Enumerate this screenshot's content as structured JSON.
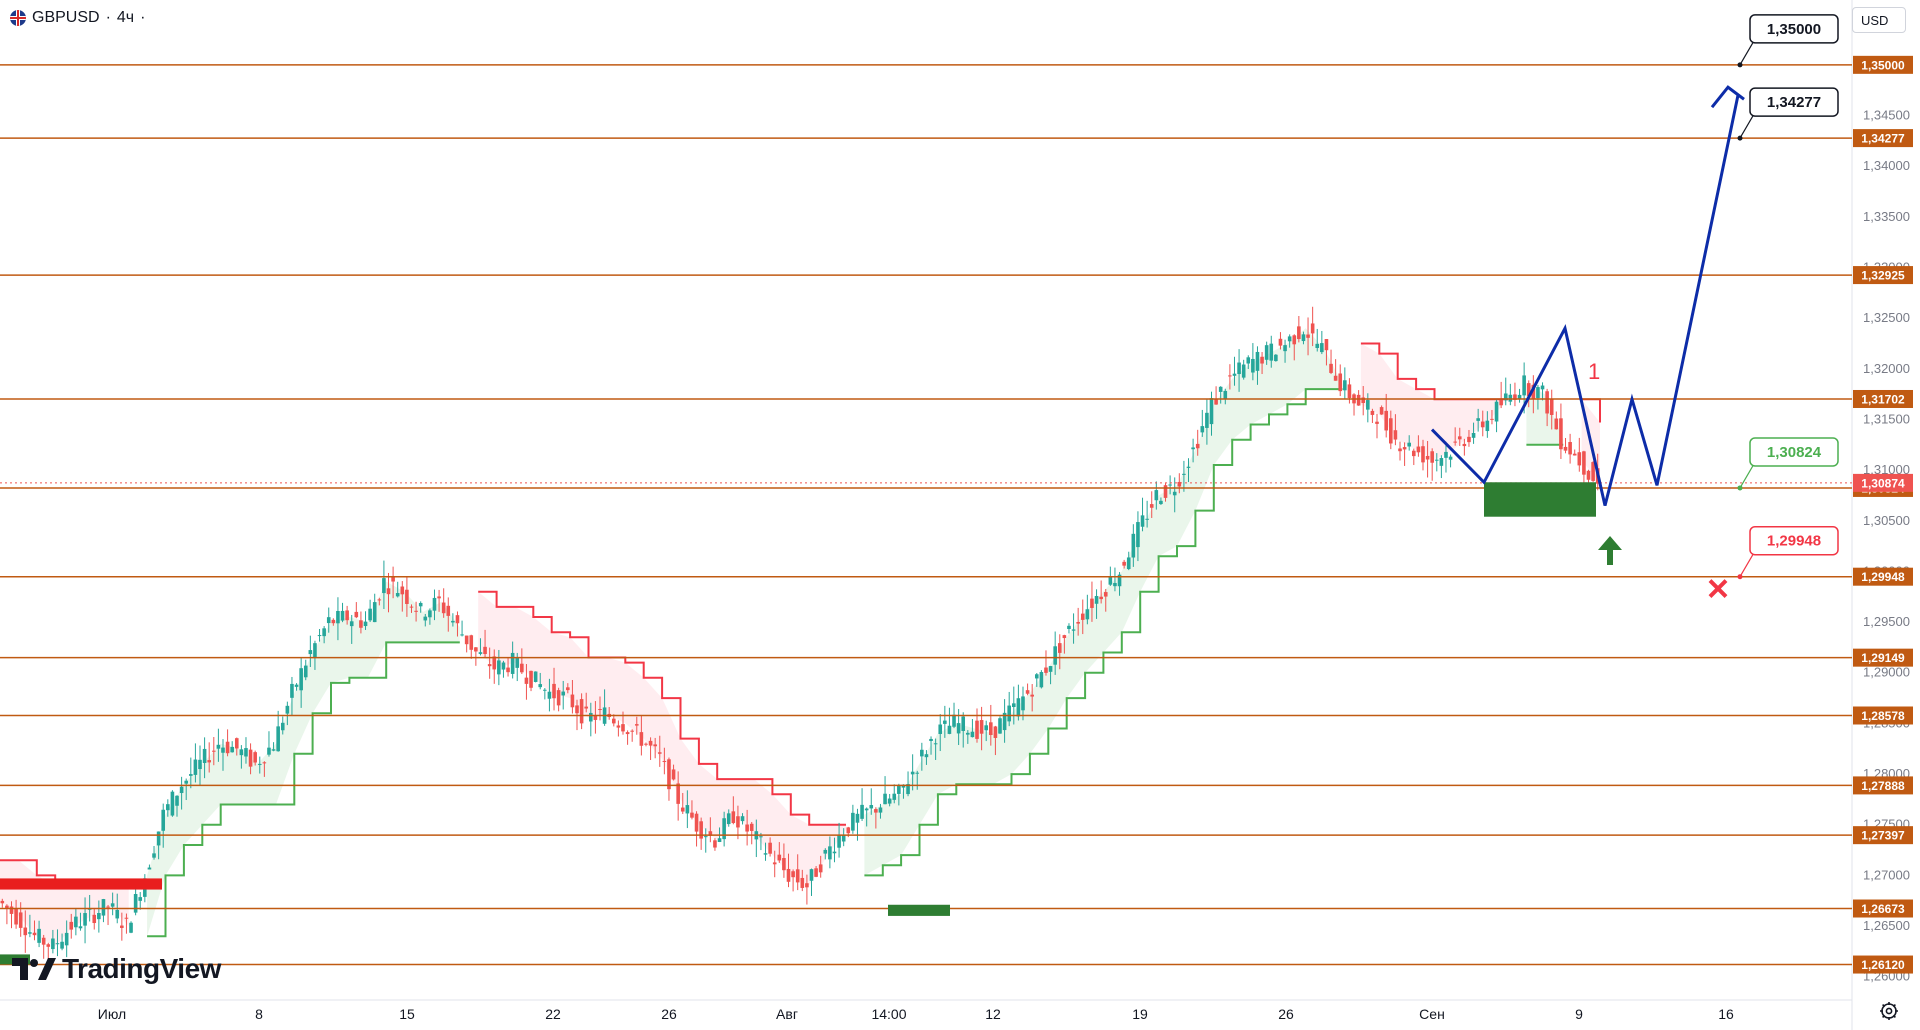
{
  "header": {
    "symbol": "GBPUSD",
    "separator": "·",
    "timeframe": "4ч",
    "trailing": "·"
  },
  "currency_button": {
    "label": "USD"
  },
  "logo": {
    "text": "TradingView"
  },
  "colors": {
    "level_line": "#c05a12",
    "level_badge": "#c05a12",
    "candle_up": "#26a69a",
    "candle_down": "#ef5350",
    "trail_up": "#4caf50",
    "trail_down": "#f23645",
    "trail_up_fill": "#e8f5e9",
    "trail_down_fill": "#ffebee",
    "forecast": "#0d2ca8",
    "target_box": "#131722",
    "long_box": "#2e7d32",
    "stop": "#f23645",
    "entry": "#4caf50",
    "current_price": "#ef5350"
  },
  "chart_data": {
    "type": "candlestick",
    "symbol": "GBPUSD",
    "timeframe": "4ч",
    "currency": "USD",
    "ylim": [
      1.2577,
      1.3564
    ],
    "y_ticks": [
      "1,26000",
      "1,26500",
      "1,27000",
      "1,27500",
      "1,28000",
      "1,28500",
      "1,29000",
      "1,29500",
      "1,30000",
      "1,30500",
      "1,31000",
      "1,31500",
      "1,32000",
      "1,32500",
      "1,33000",
      "1,33500",
      "1,34000",
      "1,34500"
    ],
    "x_ticks": [
      "Июл",
      "8",
      "15",
      "22",
      "26",
      "Авг",
      "14:00",
      "12",
      "19",
      "26",
      "Сен",
      "9",
      "16"
    ],
    "levels": [
      "1,35000",
      "1,34277",
      "1,32925",
      "1,31702",
      "1,30824",
      "1,29948",
      "1,29149",
      "1,28578",
      "1,27888",
      "1,27397",
      "1,26673",
      "1,26120"
    ],
    "current_price": "1,30874",
    "annotations": {
      "target_1": "1,35000",
      "target_2": "1,34277",
      "entry": "1,30824",
      "stop": "1,29948",
      "wave_label": "1"
    },
    "approx_close_path": [
      1.2675,
      1.266,
      1.264,
      1.263,
      1.265,
      1.266,
      1.267,
      1.265,
      1.27,
      1.276,
      1.279,
      1.281,
      1.283,
      1.2825,
      1.281,
      1.283,
      1.288,
      1.292,
      1.295,
      1.2955,
      1.295,
      1.299,
      1.298,
      1.296,
      1.297,
      1.2945,
      1.292,
      1.2905,
      1.291,
      1.2895,
      1.288,
      1.2875,
      1.2855,
      1.286,
      1.285,
      1.2835,
      1.2815,
      1.2775,
      1.275,
      1.2735,
      1.276,
      1.274,
      1.272,
      1.27,
      1.269,
      1.272,
      1.2745,
      1.276,
      1.277,
      1.278,
      1.281,
      1.284,
      1.285,
      1.2845,
      1.284,
      1.286,
      1.288,
      1.2905,
      1.2935,
      1.296,
      1.298,
      1.3,
      1.304,
      1.3075,
      1.3085,
      1.312,
      1.3165,
      1.319,
      1.3205,
      1.3215,
      1.3225,
      1.324,
      1.322,
      1.3185,
      1.3165,
      1.3155,
      1.313,
      1.312,
      1.311,
      1.312,
      1.3135,
      1.315,
      1.317,
      1.3185,
      1.3175,
      1.313,
      1.311,
      1.3087
    ]
  }
}
